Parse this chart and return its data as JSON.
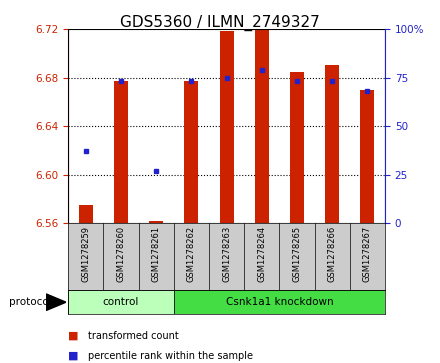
{
  "title": "GDS5360 / ILMN_2749327",
  "samples": [
    "GSM1278259",
    "GSM1278260",
    "GSM1278261",
    "GSM1278262",
    "GSM1278263",
    "GSM1278264",
    "GSM1278265",
    "GSM1278266",
    "GSM1278267"
  ],
  "bar_top": [
    6.575,
    6.677,
    6.562,
    6.677,
    6.718,
    6.719,
    6.685,
    6.69,
    6.67
  ],
  "bar_base": 6.56,
  "percentile_rank": [
    37,
    73,
    27,
    73,
    75,
    79,
    73,
    73,
    68
  ],
  "ylim_left": [
    6.56,
    6.72
  ],
  "ylim_right": [
    0,
    100
  ],
  "yticks_left": [
    6.56,
    6.6,
    6.64,
    6.68,
    6.72
  ],
  "yticks_right": [
    0,
    25,
    50,
    75,
    100
  ],
  "bar_color": "#cc2200",
  "dot_color": "#2222cc",
  "groups": [
    {
      "label": "control",
      "indices": [
        0,
        1,
        2
      ],
      "color": "#bbffbb"
    },
    {
      "label": "Csnk1a1 knockdown",
      "indices": [
        3,
        4,
        5,
        6,
        7,
        8
      ],
      "color": "#44dd44"
    }
  ],
  "protocol_label": "protocol",
  "legend_items": [
    {
      "label": "transformed count",
      "color": "#cc2200"
    },
    {
      "label": "percentile rank within the sample",
      "color": "#2222cc"
    }
  ],
  "left_tick_color": "#cc2200",
  "right_tick_color": "#2222cc",
  "tick_area_bg": "#cccccc",
  "title_fontsize": 11,
  "bar_width": 0.4
}
